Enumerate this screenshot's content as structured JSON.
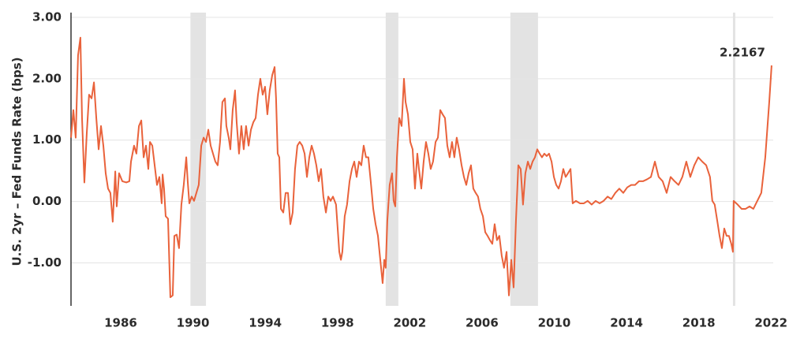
{
  "chart_data": {
    "type": "line",
    "y_label": "U.S. 2yr – Fed Funds Rate (bps)",
    "color": "#e9623b",
    "shade_color": "#e3e3e3",
    "grid": true,
    "xlim": [
      1983.25,
      2022.12
    ],
    "ylim": [
      -1.7,
      3.0
    ],
    "xticks": [
      1986,
      1990,
      1994,
      1998,
      2002,
      2006,
      2010,
      2014,
      2018,
      2022
    ],
    "yticks": [
      {
        "value": -1,
        "label": "-1.00"
      },
      {
        "value": 0,
        "label": "0.00"
      },
      {
        "value": 1,
        "label": "1.00"
      },
      {
        "value": 2,
        "label": "2.00"
      },
      {
        "value": 3,
        "label": "3.00"
      }
    ],
    "shaded_periods": [
      [
        1989.86,
        1990.72
      ],
      [
        2000.67,
        2001.37
      ],
      [
        2007.57,
        2009.1
      ],
      [
        2019.89,
        2020.02
      ]
    ],
    "annotations": [
      {
        "text": "2.2167",
        "value": 2.2167
      }
    ],
    "x": [
      1983.25,
      1983.38,
      1983.51,
      1983.64,
      1983.77,
      1983.86,
      1983.99,
      1984.12,
      1984.25,
      1984.39,
      1984.52,
      1984.65,
      1984.78,
      1984.91,
      1985.04,
      1985.17,
      1985.3,
      1985.43,
      1985.56,
      1985.7,
      1985.78,
      1985.91,
      1986.09,
      1986.31,
      1986.48,
      1986.57,
      1986.74,
      1986.87,
      1987.01,
      1987.14,
      1987.27,
      1987.4,
      1987.53,
      1987.62,
      1987.75,
      1987.88,
      1988.01,
      1988.14,
      1988.27,
      1988.32,
      1988.4,
      1988.49,
      1988.62,
      1988.75,
      1988.88,
      1988.97,
      1989.1,
      1989.23,
      1989.36,
      1989.49,
      1989.63,
      1989.71,
      1989.8,
      1989.93,
      1990.06,
      1990.19,
      1990.32,
      1990.46,
      1990.59,
      1990.72,
      1990.85,
      1990.98,
      1991.11,
      1991.24,
      1991.37,
      1991.5,
      1991.63,
      1991.77,
      1991.85,
      1991.98,
      1992.07,
      1992.2,
      1992.33,
      1992.42,
      1992.55,
      1992.68,
      1992.81,
      1992.94,
      1993.08,
      1993.21,
      1993.34,
      1993.47,
      1993.6,
      1993.73,
      1993.86,
      1993.99,
      1994.12,
      1994.25,
      1994.39,
      1994.52,
      1994.6,
      1994.69,
      1994.78,
      1994.87,
      1995.0,
      1995.13,
      1995.26,
      1995.39,
      1995.52,
      1995.65,
      1995.78,
      1995.91,
      1996.05,
      1996.18,
      1996.31,
      1996.44,
      1996.57,
      1996.7,
      1996.83,
      1996.96,
      1997.09,
      1997.22,
      1997.36,
      1997.49,
      1997.62,
      1997.75,
      1997.92,
      1998.1,
      1998.19,
      1998.27,
      1998.4,
      1998.53,
      1998.67,
      1998.8,
      1998.93,
      1999.06,
      1999.19,
      1999.32,
      1999.45,
      1999.58,
      1999.71,
      1999.84,
      1999.98,
      2000.11,
      2000.24,
      2000.37,
      2000.5,
      2000.59,
      2000.67,
      2000.76,
      2000.89,
      2001.02,
      2001.11,
      2001.2,
      2001.29,
      2001.42,
      2001.55,
      2001.68,
      2001.77,
      2001.9,
      2002.03,
      2002.16,
      2002.29,
      2002.42,
      2002.51,
      2002.64,
      2002.77,
      2002.9,
      2003.03,
      2003.16,
      2003.29,
      2003.43,
      2003.56,
      2003.69,
      2003.82,
      2003.95,
      2004.08,
      2004.21,
      2004.34,
      2004.47,
      2004.6,
      2004.73,
      2004.87,
      2005.0,
      2005.13,
      2005.26,
      2005.39,
      2005.52,
      2005.65,
      2005.78,
      2005.91,
      2006.05,
      2006.18,
      2006.31,
      2006.44,
      2006.57,
      2006.7,
      2006.83,
      2006.96,
      2007.09,
      2007.22,
      2007.36,
      2007.49,
      2007.62,
      2007.75,
      2007.88,
      2008.01,
      2008.14,
      2008.27,
      2008.4,
      2008.54,
      2008.67,
      2008.8,
      2008.93,
      2009.06,
      2009.19,
      2009.32,
      2009.45,
      2009.58,
      2009.71,
      2009.85,
      2009.98,
      2010.11,
      2010.24,
      2010.37,
      2010.5,
      2010.63,
      2010.76,
      2010.9,
      2011.02,
      2011.2,
      2011.42,
      2011.64,
      2011.85,
      2012.07,
      2012.29,
      2012.51,
      2012.73,
      2012.95,
      2013.16,
      2013.38,
      2013.6,
      2013.82,
      2014.04,
      2014.26,
      2014.47,
      2014.69,
      2014.91,
      2015.13,
      2015.35,
      2015.57,
      2015.78,
      2016.0,
      2016.22,
      2016.44,
      2016.66,
      2016.88,
      2017.09,
      2017.31,
      2017.53,
      2017.75,
      2017.97,
      2018.19,
      2018.41,
      2018.62,
      2018.75,
      2018.88,
      2019.02,
      2019.15,
      2019.28,
      2019.41,
      2019.54,
      2019.67,
      2019.8,
      2019.89,
      2019.93,
      2020.15,
      2020.37,
      2020.59,
      2020.81,
      2021.02,
      2021.24,
      2021.46,
      2021.68,
      2021.9,
      2022.03
    ],
    "values": [
      1.04,
      1.49,
      1.04,
      2.38,
      2.67,
      1.36,
      0.31,
      1.1,
      1.74,
      1.68,
      1.94,
      1.36,
      0.85,
      1.23,
      0.91,
      0.46,
      0.21,
      0.14,
      -0.33,
      0.49,
      -0.08,
      0.46,
      0.33,
      0.31,
      0.33,
      0.65,
      0.91,
      0.78,
      1.23,
      1.32,
      0.72,
      0.91,
      0.53,
      0.97,
      0.91,
      0.59,
      0.27,
      0.4,
      -0.03,
      0.44,
      0.21,
      -0.24,
      -0.28,
      -1.56,
      -1.53,
      -0.56,
      -0.54,
      -0.76,
      -0.05,
      0.27,
      0.72,
      0.33,
      -0.03,
      0.08,
      0.01,
      0.14,
      0.27,
      0.91,
      1.04,
      0.97,
      1.17,
      0.91,
      0.78,
      0.65,
      0.59,
      0.97,
      1.62,
      1.68,
      1.23,
      1.04,
      0.85,
      1.49,
      1.81,
      1.29,
      0.78,
      1.23,
      0.85,
      1.23,
      0.91,
      1.17,
      1.29,
      1.36,
      1.74,
      2.0,
      1.74,
      1.87,
      1.42,
      1.81,
      2.06,
      2.19,
      1.68,
      0.78,
      0.72,
      -0.12,
      -0.18,
      0.14,
      0.14,
      -0.37,
      -0.18,
      0.53,
      0.91,
      0.97,
      0.91,
      0.78,
      0.4,
      0.72,
      0.91,
      0.78,
      0.59,
      0.33,
      0.53,
      0.08,
      -0.18,
      0.08,
      0.01,
      0.08,
      -0.05,
      -0.82,
      -0.95,
      -0.82,
      -0.24,
      -0.05,
      0.33,
      0.53,
      0.65,
      0.4,
      0.65,
      0.59,
      0.91,
      0.72,
      0.72,
      0.33,
      -0.12,
      -0.37,
      -0.56,
      -0.95,
      -1.33,
      -0.95,
      -1.08,
      -0.31,
      0.27,
      0.46,
      0.01,
      -0.08,
      0.72,
      1.36,
      1.23,
      2.0,
      1.62,
      1.42,
      0.97,
      0.85,
      0.21,
      0.78,
      0.53,
      0.21,
      0.65,
      0.97,
      0.78,
      0.53,
      0.65,
      0.97,
      1.04,
      1.49,
      1.42,
      1.36,
      0.91,
      0.72,
      0.97,
      0.72,
      1.04,
      0.85,
      0.59,
      0.4,
      0.27,
      0.46,
      0.59,
      0.21,
      0.14,
      0.08,
      -0.12,
      -0.24,
      -0.5,
      -0.56,
      -0.63,
      -0.69,
      -0.37,
      -0.63,
      -0.56,
      -0.88,
      -1.08,
      -0.82,
      -1.53,
      -0.95,
      -1.4,
      -0.31,
      0.59,
      0.53,
      -0.05,
      0.46,
      0.65,
      0.53,
      0.65,
      0.72,
      0.85,
      0.78,
      0.72,
      0.78,
      0.74,
      0.78,
      0.65,
      0.4,
      0.27,
      0.21,
      0.33,
      0.53,
      0.4,
      0.46,
      0.53,
      -0.03,
      0.01,
      -0.03,
      -0.03,
      0.01,
      -0.05,
      0.01,
      -0.03,
      0.01,
      0.08,
      0.04,
      0.14,
      0.21,
      0.14,
      0.23,
      0.27,
      0.27,
      0.33,
      0.33,
      0.36,
      0.4,
      0.65,
      0.4,
      0.33,
      0.14,
      0.4,
      0.33,
      0.27,
      0.4,
      0.65,
      0.4,
      0.59,
      0.72,
      0.65,
      0.59,
      0.4,
      0.01,
      -0.05,
      -0.31,
      -0.56,
      -0.76,
      -0.44,
      -0.56,
      -0.56,
      -0.69,
      -0.82,
      0.01,
      -0.05,
      -0.12,
      -0.12,
      -0.08,
      -0.12,
      0.01,
      0.14,
      0.72,
      1.62,
      2.2167
    ]
  }
}
